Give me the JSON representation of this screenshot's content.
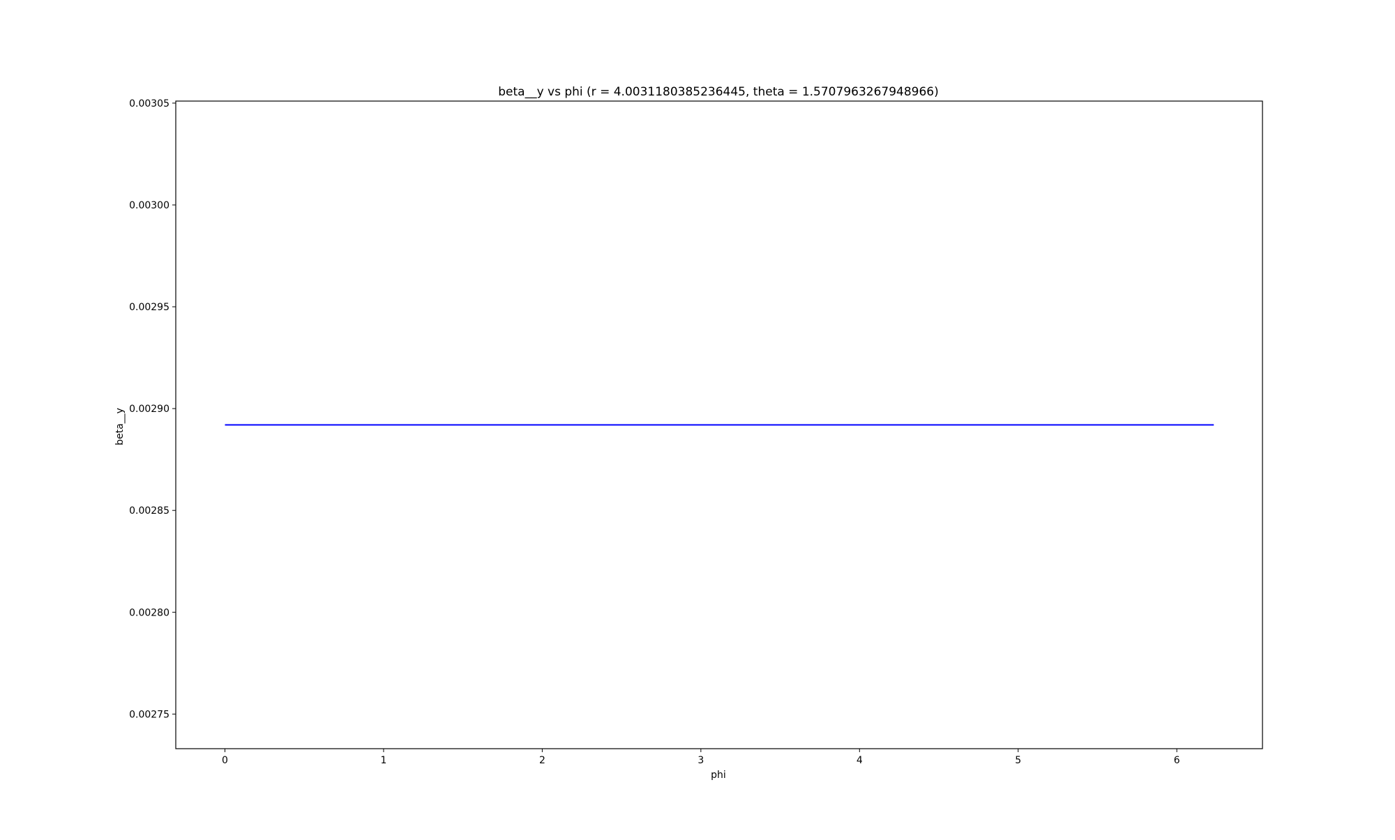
{
  "chart_data": {
    "type": "line",
    "title": "beta__y vs phi (r = 4.0031180385236445, theta = 1.5707963267948966)",
    "xlabel": "phi",
    "ylabel": "beta__y",
    "xlim": [
      -0.31,
      6.54
    ],
    "ylim": [
      0.002733,
      0.003051
    ],
    "x_ticks": [
      0,
      1,
      2,
      3,
      4,
      5,
      6
    ],
    "x_tick_labels": [
      "0",
      "1",
      "2",
      "3",
      "4",
      "5",
      "6"
    ],
    "y_ticks": [
      0.00275,
      0.0028,
      0.00285,
      0.0029,
      0.00295,
      0.003,
      0.00305
    ],
    "y_tick_labels": [
      "0.00275",
      "0.00280",
      "0.00285",
      "0.00290",
      "0.00295",
      "0.00300",
      "0.00305"
    ],
    "grid": false,
    "series": [
      {
        "color": "#0000ff",
        "x": [
          0,
          6.2332
        ],
        "y": [
          0.002892,
          0.002892
        ]
      }
    ]
  }
}
